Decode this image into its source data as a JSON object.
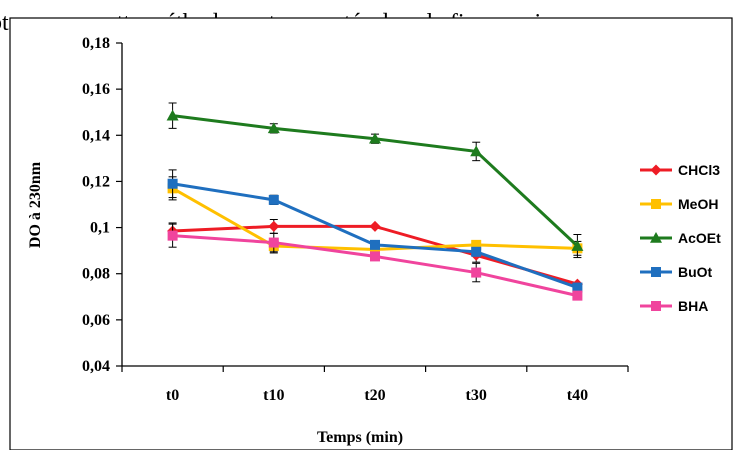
{
  "header_text": "btenus par cette méthode sont rapportés dans la figure sui",
  "chart_data": {
    "type": "line",
    "title": "",
    "xlabel": "Temps (min)",
    "ylabel": "DO à 230nm",
    "categories": [
      "t0",
      "t10",
      "t20",
      "t30",
      "t40"
    ],
    "ylim": [
      0.04,
      0.18
    ],
    "yticks": [
      "0,04",
      "0,06",
      "0,08",
      "0,1",
      "0,12",
      "0,14",
      "0,16",
      "0,18"
    ],
    "grid": false,
    "legend_position": "right",
    "series": [
      {
        "name": "CHCl3",
        "color": "#ee1c25",
        "marker": "diamond",
        "values": [
          0.0985,
          0.1005,
          0.1005,
          0.088,
          0.0755
        ],
        "errors": [
          0.0035,
          0.003,
          0.0,
          0.003,
          0.0
        ]
      },
      {
        "name": "MeOH",
        "color": "#ffc000",
        "marker": "square",
        "values": [
          0.117,
          0.092,
          0.0905,
          0.0925,
          0.091
        ],
        "errors": [
          0.005,
          0.003,
          0.0,
          0.0,
          0.003
        ]
      },
      {
        "name": "AcOEt",
        "color": "#1e7b1e",
        "marker": "triangle",
        "values": [
          0.1485,
          0.143,
          0.1385,
          0.133,
          0.092
        ],
        "errors": [
          0.0055,
          0.002,
          0.002,
          0.004,
          0.005
        ]
      },
      {
        "name": "BuOt",
        "color": "#1f6fbf",
        "marker": "square",
        "values": [
          0.119,
          0.112,
          0.0925,
          0.0895,
          0.074
        ],
        "errors": [
          0.006,
          0.002,
          0.0,
          0.0,
          0.0
        ]
      },
      {
        "name": "BHA",
        "color": "#f0449d",
        "marker": "square",
        "values": [
          0.0965,
          0.0935,
          0.0875,
          0.0805,
          0.0705
        ],
        "errors": [
          0.005,
          0.004,
          0.0,
          0.004,
          0.0
        ]
      }
    ]
  }
}
